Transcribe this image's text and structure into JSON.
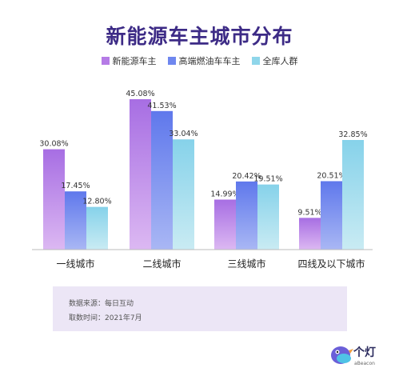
{
  "title": "新能源车主城市分布",
  "legend": [
    {
      "label": "新能源车主",
      "color": "#b57be6"
    },
    {
      "label": "高端燃油车车主",
      "color": "#6f87ef"
    },
    {
      "label": "全库人群",
      "color": "#8fd6ea"
    }
  ],
  "chart_data": {
    "type": "bar",
    "title": "新能源车主城市分布",
    "categories": [
      "一线城市",
      "二线城市",
      "三线城市",
      "四线及以下城市"
    ],
    "series": [
      {
        "name": "新能源车主",
        "values": [
          30.08,
          45.08,
          14.99,
          9.51
        ],
        "labels": [
          "30.08%",
          "45.08%",
          "14.99%",
          "9.51%"
        ]
      },
      {
        "name": "高端燃油车车主",
        "values": [
          17.45,
          41.53,
          20.42,
          20.51
        ],
        "labels": [
          "17.45%",
          "41.53%",
          "20.42%",
          "20.51%"
        ]
      },
      {
        "name": "全库人群",
        "values": [
          12.8,
          33.04,
          19.51,
          32.85
        ],
        "labels": [
          "12.80%",
          "33.04%",
          "19.51%",
          "32.85%"
        ]
      }
    ],
    "ylim": [
      0,
      45.08
    ],
    "grid": false,
    "legend_position": "top"
  },
  "source": {
    "line1": "数据来源：每日互动",
    "line2": "取数时间：2021年7月"
  },
  "logo": {
    "text": "个灯",
    "sub": "aBeacon",
    "icon": "bird-logo-icon"
  }
}
